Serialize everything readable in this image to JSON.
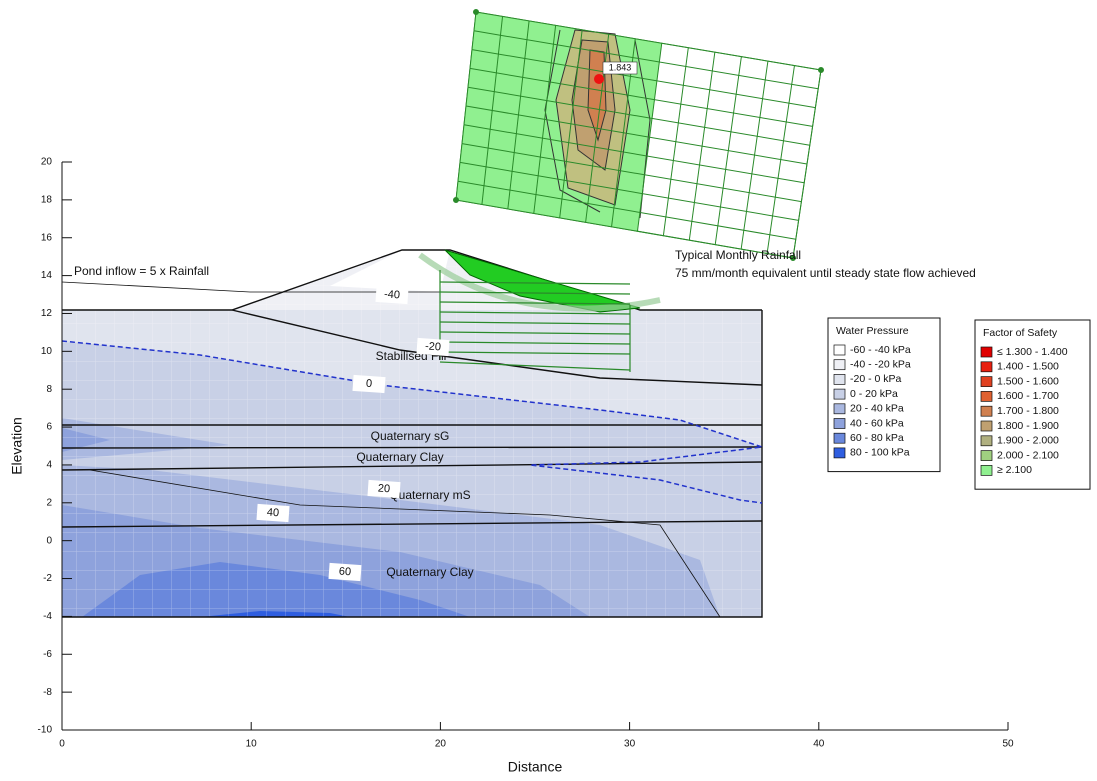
{
  "axes": {
    "x": {
      "label": "Distance",
      "lim": [
        0,
        50
      ],
      "ticks": [
        0,
        10,
        20,
        30,
        40,
        50
      ]
    },
    "y": {
      "label": "Elevation",
      "lim": [
        -10,
        20
      ],
      "ticks": [
        -10,
        -8,
        -6,
        -4,
        -2,
        0,
        2,
        4,
        6,
        8,
        10,
        12,
        14,
        16,
        18,
        20
      ]
    }
  },
  "annotations": [
    "Pond inflow = 5 x Rainfall",
    "Typical Monthly Rainfall",
    "75 mm/month equivalent until steady state flow achieved"
  ],
  "layers": [
    "Stabilised Fill",
    "Quaternary sG",
    "Quaternary Clay",
    "Quaternary mS",
    "Quaternary Clay"
  ],
  "contour_labels": [
    "-40",
    "-20",
    "0",
    "20",
    "40",
    "60"
  ],
  "critical_fos": "1.843",
  "water_pressure_legend": {
    "title": "Water Pressure",
    "items": [
      {
        "label": "-60 - -40 kPa",
        "color": "#ffffff"
      },
      {
        "label": "-40 - -20 kPa",
        "color": "#eff0f5"
      },
      {
        "label": "-20 - 0 kPa",
        "color": "#e0e4ee"
      },
      {
        "label": "0 - 20 kPa",
        "color": "#c8d0e6"
      },
      {
        "label": "20 - 40 kPa",
        "color": "#aab8e0"
      },
      {
        "label": "40 - 60 kPa",
        "color": "#8ea2dc"
      },
      {
        "label": "60 - 80 kPa",
        "color": "#6a88dc"
      },
      {
        "label": "80 - 100 kPa",
        "color": "#2f5ee0"
      }
    ]
  },
  "fos_legend": {
    "title": "Factor of Safety",
    "items": [
      {
        "label": "≤ 1.300 - 1.400",
        "color": "#e00000"
      },
      {
        "label": "1.400 - 1.500",
        "color": "#e82010"
      },
      {
        "label": "1.500 - 1.600",
        "color": "#e04020"
      },
      {
        "label": "1.600 - 1.700",
        "color": "#e06030"
      },
      {
        "label": "1.700 - 1.800",
        "color": "#d08050"
      },
      {
        "label": "1.800 - 1.900",
        "color": "#c0a070"
      },
      {
        "label": "1.900 - 2.000",
        "color": "#b0b080"
      },
      {
        "label": "2.000 - 2.100",
        "color": "#a0d080"
      },
      {
        "label": "≥ 2.100",
        "color": "#90f090"
      }
    ]
  }
}
